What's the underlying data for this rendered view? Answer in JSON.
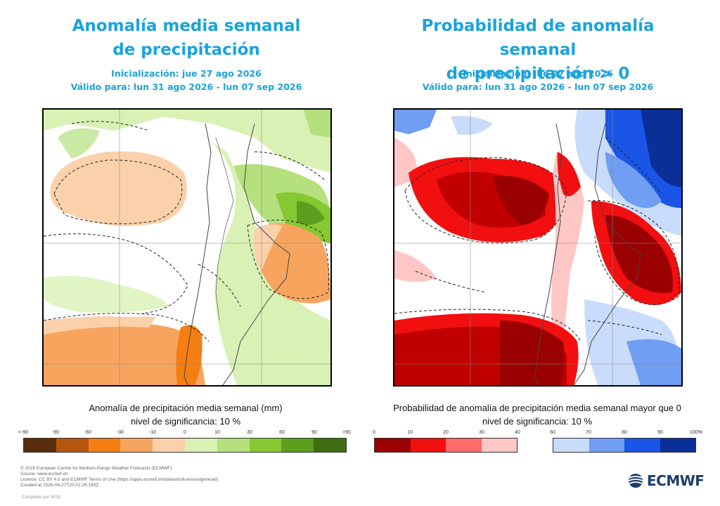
{
  "left": {
    "title_line1": "Anomalía media semanal",
    "title_line2": "de precipitación",
    "init": "Inicialización: jue 27 ago 2026",
    "valid": "Válido para: lun 31 ago 2026 - lun 07 sep 2026",
    "caption_line1": "Anomalía de precipitación media semanal (mm)",
    "caption_line2": "nivel de significancia: 10 %",
    "legend": {
      "ticks": [
        "<-90",
        "-90",
        "-60",
        "-30",
        "-10",
        "0",
        "10",
        "30",
        "60",
        "90",
        ">90"
      ],
      "colors": [
        "#5a2d0c",
        "#b5560f",
        "#f57e12",
        "#f7a55e",
        "#fbd1ab",
        "#d9f1b5",
        "#b4e07d",
        "#86c832",
        "#5c9e1e",
        "#3f6e12"
      ]
    }
  },
  "right": {
    "title_line1": "Probabilidad de anomalía semanal",
    "title_line2": "de precipitación > 0",
    "init": "Inicialización: jue 27 ago 2026",
    "valid": "Válido para: lun 31 ago 2026 - lun 07 sep 2026",
    "caption_line1": "Probabilidad de anomalía de precipitación media semanal mayor que 0",
    "caption_line2": "nivel de significancia: 10 %",
    "legend": {
      "ticks_low": [
        "0",
        "10",
        "20",
        "30",
        "40"
      ],
      "colors_low": [
        "#9b0000",
        "#f20f10",
        "#ff6b6b",
        "#ffc6c6"
      ],
      "ticks_high": [
        "60",
        "70",
        "80",
        "90",
        "100%"
      ],
      "colors_high": [
        "#c9dcfb",
        "#6f9ef2",
        "#1a55e8",
        "#0a2f96"
      ]
    }
  },
  "footer": {
    "line1": "© 2026 European Centre for Medium-Range Weather Forecasts (ECMWF)",
    "line2": "Source: www.ecmwf.int",
    "line3": "Licence: CC BY 4.0 and ECMWF Terms of Use (https://apps.ecmwf.int/datasets/licences/general/)",
    "line4": "Created at 2026-08-27T20:02:26.160Z",
    "compiled": "Compilado por WUG"
  },
  "logo_text": "ECMWF"
}
